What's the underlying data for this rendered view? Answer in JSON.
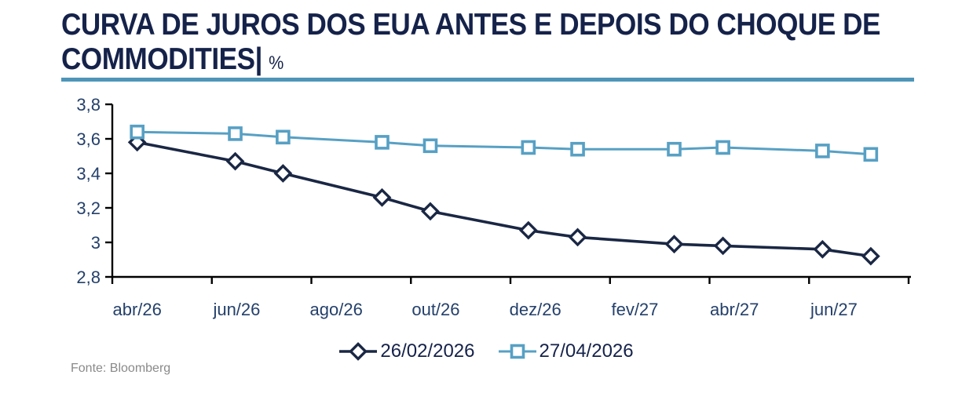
{
  "title": {
    "line1": "CURVA DE JUROS DOS EUA ANTES E DEPOIS DO CHOQUE DE",
    "line2": "COMMODITIES|",
    "unit": "%"
  },
  "source": "Fonte: Bloomberg",
  "colors": {
    "title": "#15224A",
    "axis_labels": "#24406B",
    "axis_line": "#000000",
    "rule": "#4E95B8",
    "series1": "#1A2744",
    "series2": "#57A0C4",
    "source_text": "#8A8A8A"
  },
  "legend": {
    "items": [
      {
        "label": "26/02/2026",
        "marker": "diamond"
      },
      {
        "label": "27/04/2026",
        "marker": "square"
      }
    ]
  },
  "chart_data": {
    "type": "line",
    "title": "CURVA DE JUROS DOS EUA ANTES E DEPOIS DO CHOQUE DE COMMODITIES",
    "unit": "%",
    "xlabel": "",
    "ylabel": "",
    "ylim": [
      2.8,
      3.8
    ],
    "grid": false,
    "legend_position": "bottom",
    "y_ticks": [
      "3,8",
      "3,6",
      "3,4",
      "3,2",
      "3",
      "2,8"
    ],
    "y_tick_values": [
      3.8,
      3.6,
      3.4,
      3.2,
      3.0,
      2.8
    ],
    "x_tick_labels": [
      "abr/26",
      "jun/26",
      "ago/26",
      "out/26",
      "dez/26",
      "fev/27",
      "abr/27",
      "jun/27"
    ],
    "x_label_months": [
      0,
      2,
      4,
      6,
      8,
      10,
      12,
      14
    ],
    "x_axis_tick_months": [
      -0.5,
      1.5,
      3.5,
      5.5,
      7.5,
      9.5,
      11.5,
      13.5,
      15.5
    ],
    "series": [
      {
        "name": "26/02/2026",
        "marker": "diamond",
        "color": "#1A2744",
        "x_months": [
          0,
          1.97,
          2.93,
          4.92,
          5.89,
          7.86,
          8.85,
          10.79,
          11.77,
          13.77,
          14.74
        ],
        "values": [
          3.58,
          3.47,
          3.4,
          3.26,
          3.18,
          3.07,
          3.03,
          2.99,
          2.98,
          2.96,
          2.92
        ]
      },
      {
        "name": "27/04/2026",
        "marker": "square",
        "color": "#57A0C4",
        "x_months": [
          0,
          1.97,
          2.93,
          4.92,
          5.89,
          7.86,
          8.85,
          10.79,
          11.77,
          13.77,
          14.74
        ],
        "values": [
          3.64,
          3.63,
          3.61,
          3.58,
          3.56,
          3.55,
          3.54,
          3.54,
          3.55,
          3.53,
          3.51
        ]
      }
    ]
  }
}
